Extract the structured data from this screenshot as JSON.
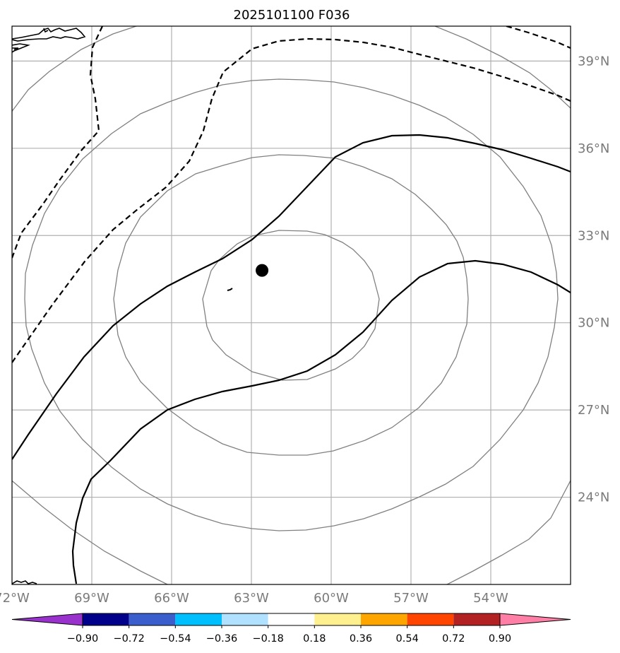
{
  "title": "2025101100 F036",
  "map": {
    "lon_range": [
      -72.0,
      -51.0
    ],
    "lat_range": [
      21.0,
      40.2
    ],
    "lon_ticks": [
      {
        "value": -72,
        "label": "72°W"
      },
      {
        "value": -69,
        "label": "69°W"
      },
      {
        "value": -66,
        "label": "66°W"
      },
      {
        "value": -63,
        "label": "63°W"
      },
      {
        "value": -60,
        "label": "60°W"
      },
      {
        "value": -57,
        "label": "57°W"
      },
      {
        "value": -54,
        "label": "54°W"
      }
    ],
    "lat_ticks": [
      {
        "value": 24,
        "label": "24°N"
      },
      {
        "value": 27,
        "label": "27°N"
      },
      {
        "value": 30,
        "label": "30°N"
      },
      {
        "value": 33,
        "label": "33°N"
      },
      {
        "value": 36,
        "label": "36°N"
      },
      {
        "value": 39,
        "label": "39°N"
      }
    ],
    "storm_center": {
      "lon": -62.6,
      "lat": 31.8
    },
    "colors": {
      "grid": "#b0b0b0",
      "range_rings": "#808080",
      "contours": "#000000",
      "coast": "#000000"
    }
  },
  "colorbar": {
    "levels": [
      "−0.90",
      "−0.72",
      "−0.54",
      "−0.36",
      "−0.18",
      "0.18",
      "0.36",
      "0.54",
      "0.72",
      "0.90"
    ],
    "colors": [
      "#9932cc",
      "#00008b",
      "#3a5fcd",
      "#00bfff",
      "#b0e2ff",
      "#ffffff",
      "#fff08f",
      "#ffa500",
      "#ff4500",
      "#b22222",
      "#ff7fa7"
    ]
  }
}
